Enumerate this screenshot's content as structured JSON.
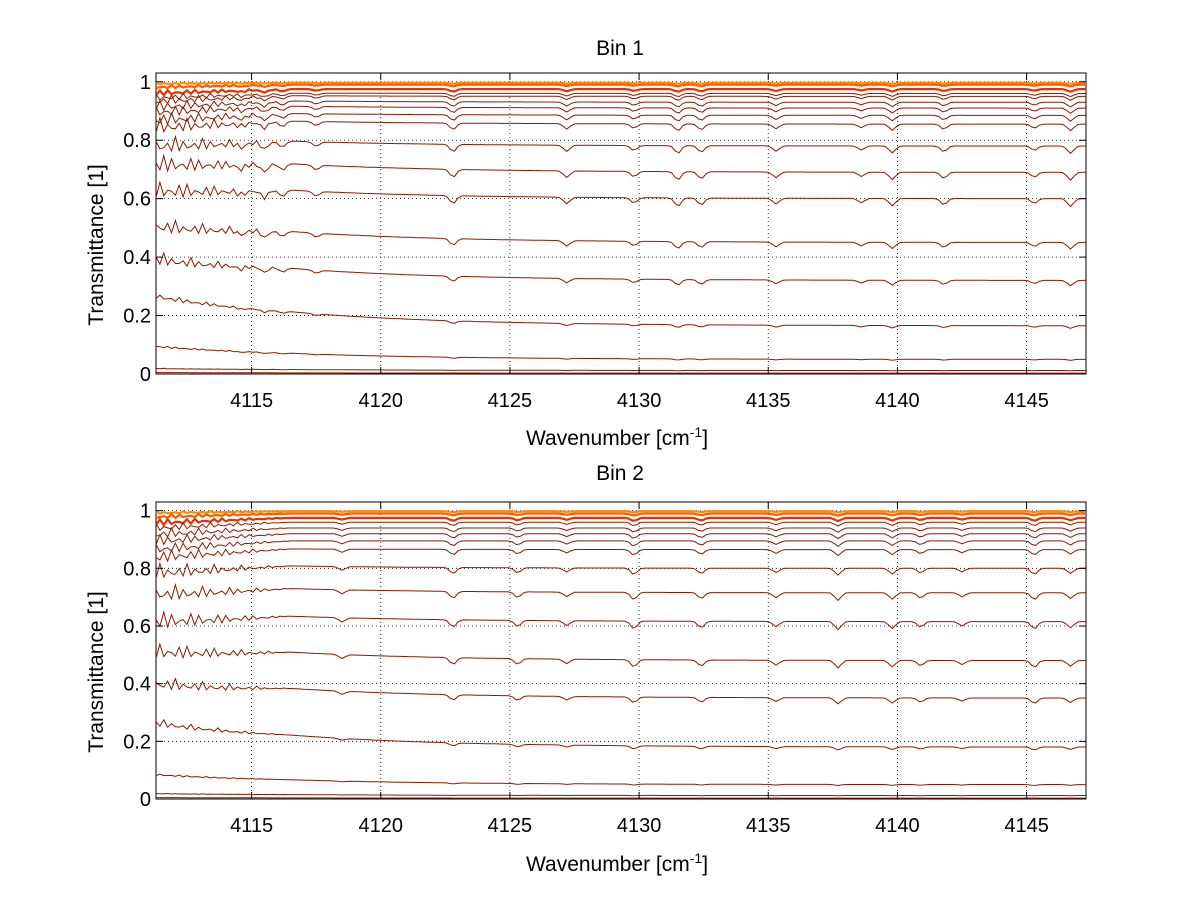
{
  "chart_data": [
    {
      "type": "line",
      "title": "Bin 1",
      "xlabel": "Wavenumber [cm",
      "xlabel_sup": "-1",
      "xlabel_end": "]",
      "ylabel": "Transmittance [1]",
      "xlim": [
        4111.3,
        4147.3
      ],
      "ylim": [
        0,
        1.03
      ],
      "xticks": [
        4115,
        4120,
        4125,
        4130,
        4135,
        4140,
        4145
      ],
      "yticks": [
        0,
        0.2,
        0.4,
        0.6,
        0.8,
        1
      ],
      "ytick_labels": [
        "0",
        "0.2",
        "0.4",
        "0.6",
        "0.8",
        "1"
      ],
      "grid": true,
      "line_color": "#8b1a00",
      "top_colors": [
        "#ff8c00",
        "#ff5a00",
        "#e83000",
        "#ffa500",
        "#0050d0"
      ],
      "absorption_lines": [
        4114.6,
        4115.5,
        4116.2,
        4117.5,
        4122.8,
        4127.2,
        4129.8,
        4131.5,
        4132.4,
        4135.3,
        4138.6,
        4139.8,
        4141.8,
        4145.3,
        4146.7
      ],
      "series": [
        {
          "end": 0.996,
          "start": 0.998,
          "depth": 0.003
        },
        {
          "end": 0.99,
          "start": 0.99,
          "depth": 0.006
        },
        {
          "end": 0.975,
          "start": 0.975,
          "depth": 0.01
        },
        {
          "end": 0.96,
          "start": 0.962,
          "depth": 0.012
        },
        {
          "end": 0.95,
          "start": 0.955,
          "depth": 0.015
        },
        {
          "end": 0.93,
          "start": 0.94,
          "depth": 0.018
        },
        {
          "end": 0.91,
          "start": 0.925,
          "depth": 0.02
        },
        {
          "end": 0.885,
          "start": 0.9,
          "depth": 0.022
        },
        {
          "end": 0.855,
          "start": 0.88,
          "depth": 0.025
        },
        {
          "end": 0.78,
          "start": 0.82,
          "depth": 0.028
        },
        {
          "end": 0.69,
          "start": 0.76,
          "depth": 0.03
        },
        {
          "end": 0.6,
          "start": 0.67,
          "depth": 0.03
        },
        {
          "end": 0.45,
          "start": 0.54,
          "depth": 0.025
        },
        {
          "end": 0.32,
          "start": 0.42,
          "depth": 0.02
        },
        {
          "end": 0.165,
          "start": 0.28,
          "depth": 0.01
        },
        {
          "end": 0.05,
          "start": 0.1,
          "depth": 0.004
        },
        {
          "end": 0.012,
          "start": 0.02,
          "depth": 0.001
        },
        {
          "end": 0.003,
          "start": 0.005,
          "depth": 0.0
        }
      ]
    },
    {
      "type": "line",
      "title": "Bin 2",
      "xlabel": "Wavenumber [cm",
      "xlabel_sup": "-1",
      "xlabel_end": "]",
      "ylabel": "Transmittance [1]",
      "xlim": [
        4111.3,
        4147.3
      ],
      "ylim": [
        0,
        1.03
      ],
      "xticks": [
        4115,
        4120,
        4125,
        4130,
        4135,
        4140,
        4145
      ],
      "yticks": [
        0,
        0.2,
        0.4,
        0.6,
        0.8,
        1
      ],
      "ytick_labels": [
        "0",
        "0.2",
        "0.4",
        "0.6",
        "0.8",
        "1"
      ],
      "grid": true,
      "line_color": "#8b1a00",
      "top_colors": [
        "#ff8c00",
        "#ff5a00",
        "#e83000",
        "#ffa500",
        "#0050d0"
      ],
      "absorption_lines": [
        4118.5,
        4122.8,
        4125.3,
        4127.2,
        4129.8,
        4132.4,
        4135.3,
        4137.7,
        4139.8,
        4140.9,
        4142.5,
        4145.3,
        4146.7
      ],
      "series": [
        {
          "end": 0.998,
          "start": 0.998,
          "depth": 0.004
        },
        {
          "end": 0.99,
          "start": 0.99,
          "depth": 0.008
        },
        {
          "end": 0.975,
          "start": 0.975,
          "depth": 0.012
        },
        {
          "end": 0.96,
          "start": 0.96,
          "depth": 0.014
        },
        {
          "end": 0.94,
          "start": 0.94,
          "depth": 0.016
        },
        {
          "end": 0.92,
          "start": 0.92,
          "depth": 0.018
        },
        {
          "end": 0.895,
          "start": 0.895,
          "depth": 0.02
        },
        {
          "end": 0.865,
          "start": 0.87,
          "depth": 0.022
        },
        {
          "end": 0.8,
          "start": 0.82,
          "depth": 0.025
        },
        {
          "end": 0.715,
          "start": 0.75,
          "depth": 0.028
        },
        {
          "end": 0.615,
          "start": 0.66,
          "depth": 0.03
        },
        {
          "end": 0.48,
          "start": 0.55,
          "depth": 0.028
        },
        {
          "end": 0.35,
          "start": 0.43,
          "depth": 0.022
        },
        {
          "end": 0.18,
          "start": 0.28,
          "depth": 0.012
        },
        {
          "end": 0.05,
          "start": 0.09,
          "depth": 0.004
        },
        {
          "end": 0.012,
          "start": 0.02,
          "depth": 0.001
        },
        {
          "end": 0.003,
          "start": 0.005,
          "depth": 0.0
        }
      ]
    }
  ]
}
